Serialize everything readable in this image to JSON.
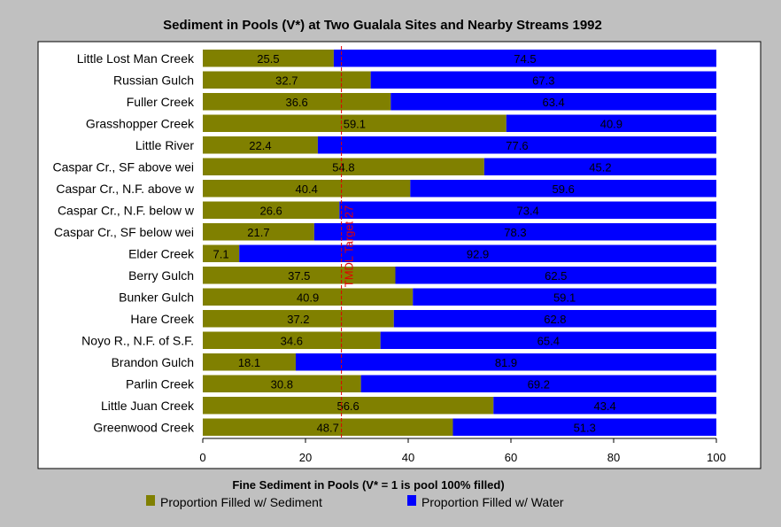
{
  "chart_data": {
    "type": "bar",
    "stacked": true,
    "orientation": "horizontal",
    "title": "Sediment in Pools (V*) at Two Gualala Sites and Nearby Streams 1992",
    "xlabel": "Fine Sediment in Pools (V* = 1 is pool 100% filled)",
    "xlim": [
      0,
      100
    ],
    "xticks": [
      0,
      20,
      40,
      60,
      80,
      100
    ],
    "categories": [
      "Little Lost Man Creek",
      "Russian Gulch",
      "Fuller Creek",
      "Grasshopper Creek",
      "Little River",
      "Caspar Cr., SF above wei",
      "Caspar Cr., N.F. above w",
      "Caspar Cr., N.F. below w",
      "Caspar Cr., SF below wei",
      "Elder Creek",
      "Berry Gulch",
      "Bunker Gulch",
      "Hare Creek",
      "Noyo R., N.F. of  S.F.",
      "Brandon Gulch",
      "Parlin Creek",
      "Little Juan Creek",
      "Greenwood Creek"
    ],
    "series": [
      {
        "name": "Proportion Filled w/ Sediment",
        "color": "#808000",
        "values": [
          25.5,
          32.7,
          36.6,
          59.1,
          22.4,
          54.8,
          40.4,
          26.6,
          21.7,
          7.1,
          37.5,
          40.9,
          37.2,
          34.6,
          18.1,
          30.8,
          56.6,
          48.7
        ]
      },
      {
        "name": "Proportion Filled w/ Water",
        "color": "#0000ff",
        "values": [
          74.5,
          67.3,
          63.4,
          40.9,
          77.6,
          45.2,
          59.6,
          73.4,
          78.3,
          92.9,
          62.5,
          59.1,
          62.8,
          65.4,
          81.9,
          69.2,
          43.4,
          51.3
        ]
      }
    ],
    "reference_line": {
      "label": "TMDL Target 27",
      "value": 27,
      "color": "#e00000"
    },
    "legend": "bottom",
    "grid": false
  }
}
